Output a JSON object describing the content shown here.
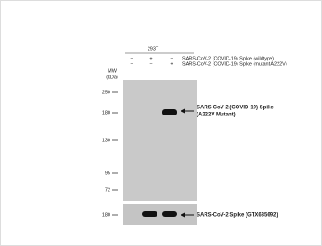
{
  "header": {
    "cell_line": "293T"
  },
  "treatments": [
    {
      "signs": [
        "−",
        "+",
        "−"
      ],
      "label": "SARS-CoV-2 (COVID-19) Spike (wildtype)"
    },
    {
      "signs": [
        "−",
        "−",
        "+"
      ],
      "label": "SARS-CoV-2 (COVID-19) Spike (mutant A222V)"
    }
  ],
  "mw_label": [
    "MW",
    "(kDa)"
  ],
  "upper_markers": [
    "250",
    "180",
    "130",
    "95",
    "72"
  ],
  "lower_markers": [
    "180"
  ],
  "annotations": {
    "upper": [
      "SARS-CoV-2  (COVID-19)  Spike",
      "(A222V Mutant)"
    ],
    "lower": "SARS-CoV-2  Spike (GTX635692)"
  }
}
